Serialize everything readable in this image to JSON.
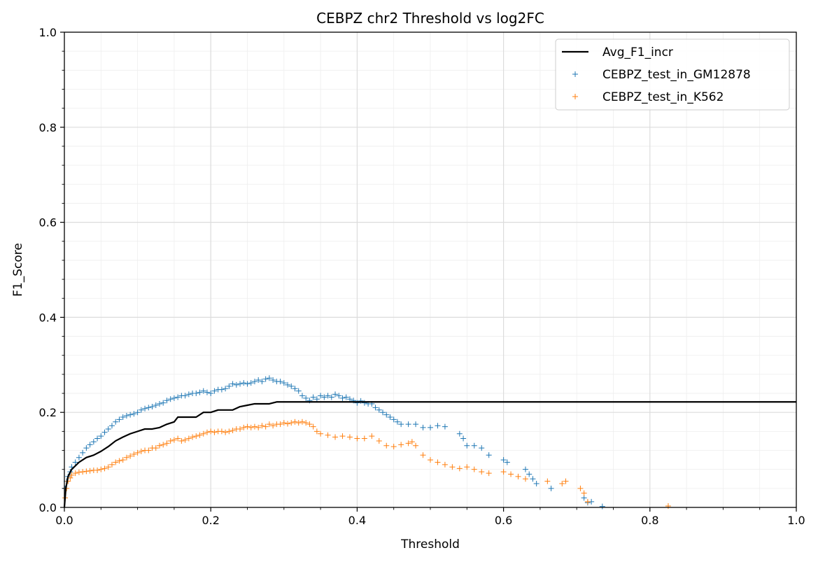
{
  "chart_data": {
    "type": "scatter",
    "title": "CEBPZ chr2 Threshold vs log2FC",
    "xlabel": "Threshold",
    "ylabel": "F1_Score",
    "xlim": [
      0.0,
      1.0
    ],
    "ylim": [
      0.0,
      1.0
    ],
    "x_ticks": [
      "0.0",
      "0.2",
      "0.4",
      "0.6",
      "0.8",
      "1.0"
    ],
    "y_ticks": [
      "0.0",
      "0.2",
      "0.4",
      "0.6",
      "0.8",
      "1.0"
    ],
    "grid": true,
    "minor_grid": true,
    "legend_position": "top-right",
    "series": [
      {
        "name": "Avg_F1_incr",
        "kind": "line",
        "color": "#000000",
        "x": [
          0.0,
          0.002,
          0.005,
          0.01,
          0.02,
          0.03,
          0.04,
          0.05,
          0.06,
          0.07,
          0.08,
          0.09,
          0.1,
          0.11,
          0.12,
          0.13,
          0.14,
          0.15,
          0.155,
          0.16,
          0.18,
          0.19,
          0.2,
          0.21,
          0.23,
          0.24,
          0.25,
          0.26,
          0.28,
          0.29,
          0.35,
          0.4,
          0.5,
          0.6,
          0.7,
          0.8,
          0.9,
          1.0
        ],
        "y": [
          0.0,
          0.04,
          0.065,
          0.08,
          0.095,
          0.105,
          0.11,
          0.118,
          0.128,
          0.14,
          0.148,
          0.155,
          0.16,
          0.165,
          0.165,
          0.168,
          0.175,
          0.18,
          0.19,
          0.19,
          0.19,
          0.2,
          0.2,
          0.205,
          0.205,
          0.212,
          0.215,
          0.218,
          0.218,
          0.222,
          0.222,
          0.222,
          0.222,
          0.222,
          0.222,
          0.222,
          0.222,
          0.222
        ]
      },
      {
        "name": "CEBPZ_test_in_GM12878",
        "kind": "scatter",
        "marker": "+",
        "color": "#1f77b4",
        "x": [
          0.001,
          0.003,
          0.005,
          0.008,
          0.01,
          0.015,
          0.02,
          0.025,
          0.03,
          0.035,
          0.04,
          0.045,
          0.05,
          0.055,
          0.06,
          0.065,
          0.07,
          0.075,
          0.08,
          0.085,
          0.09,
          0.095,
          0.1,
          0.105,
          0.11,
          0.115,
          0.12,
          0.125,
          0.13,
          0.135,
          0.14,
          0.145,
          0.15,
          0.155,
          0.16,
          0.165,
          0.17,
          0.175,
          0.18,
          0.185,
          0.19,
          0.195,
          0.2,
          0.205,
          0.21,
          0.215,
          0.22,
          0.225,
          0.23,
          0.235,
          0.24,
          0.245,
          0.25,
          0.255,
          0.26,
          0.265,
          0.27,
          0.275,
          0.28,
          0.285,
          0.29,
          0.295,
          0.3,
          0.305,
          0.31,
          0.315,
          0.32,
          0.325,
          0.33,
          0.335,
          0.34,
          0.345,
          0.35,
          0.355,
          0.36,
          0.365,
          0.37,
          0.375,
          0.38,
          0.385,
          0.39,
          0.395,
          0.4,
          0.405,
          0.41,
          0.415,
          0.42,
          0.425,
          0.43,
          0.435,
          0.44,
          0.445,
          0.45,
          0.455,
          0.46,
          0.47,
          0.48,
          0.49,
          0.5,
          0.51,
          0.52,
          0.54,
          0.545,
          0.55,
          0.56,
          0.57,
          0.58,
          0.6,
          0.605,
          0.63,
          0.635,
          0.64,
          0.645,
          0.665,
          0.71,
          0.715,
          0.72,
          0.735
        ],
        "y": [
          0.04,
          0.055,
          0.065,
          0.075,
          0.085,
          0.095,
          0.105,
          0.115,
          0.125,
          0.132,
          0.138,
          0.145,
          0.15,
          0.158,
          0.165,
          0.172,
          0.18,
          0.185,
          0.19,
          0.193,
          0.195,
          0.197,
          0.2,
          0.205,
          0.208,
          0.21,
          0.212,
          0.215,
          0.218,
          0.22,
          0.225,
          0.228,
          0.23,
          0.232,
          0.235,
          0.235,
          0.238,
          0.24,
          0.24,
          0.242,
          0.245,
          0.242,
          0.24,
          0.245,
          0.248,
          0.248,
          0.25,
          0.255,
          0.26,
          0.258,
          0.26,
          0.262,
          0.26,
          0.262,
          0.265,
          0.268,
          0.265,
          0.27,
          0.272,
          0.268,
          0.265,
          0.265,
          0.262,
          0.258,
          0.255,
          0.25,
          0.245,
          0.235,
          0.23,
          0.225,
          0.232,
          0.228,
          0.235,
          0.232,
          0.235,
          0.232,
          0.238,
          0.235,
          0.23,
          0.232,
          0.228,
          0.225,
          0.22,
          0.224,
          0.22,
          0.218,
          0.218,
          0.21,
          0.205,
          0.2,
          0.195,
          0.19,
          0.185,
          0.18,
          0.175,
          0.175,
          0.175,
          0.168,
          0.168,
          0.172,
          0.17,
          0.155,
          0.145,
          0.13,
          0.13,
          0.125,
          0.11,
          0.1,
          0.095,
          0.08,
          0.07,
          0.06,
          0.05,
          0.04,
          0.02,
          0.01,
          0.012,
          0.002
        ]
      },
      {
        "name": "CEBPZ_test_in_K562",
        "kind": "scatter",
        "marker": "+",
        "color": "#ff7f0e",
        "x": [
          0.001,
          0.003,
          0.005,
          0.008,
          0.01,
          0.015,
          0.02,
          0.025,
          0.03,
          0.035,
          0.04,
          0.045,
          0.05,
          0.055,
          0.06,
          0.065,
          0.07,
          0.075,
          0.08,
          0.085,
          0.09,
          0.095,
          0.1,
          0.105,
          0.11,
          0.115,
          0.12,
          0.125,
          0.13,
          0.135,
          0.14,
          0.145,
          0.15,
          0.155,
          0.16,
          0.165,
          0.17,
          0.175,
          0.18,
          0.185,
          0.19,
          0.195,
          0.2,
          0.205,
          0.21,
          0.215,
          0.22,
          0.225,
          0.23,
          0.235,
          0.24,
          0.245,
          0.25,
          0.255,
          0.26,
          0.265,
          0.27,
          0.275,
          0.28,
          0.285,
          0.29,
          0.295,
          0.3,
          0.305,
          0.31,
          0.315,
          0.32,
          0.325,
          0.33,
          0.335,
          0.34,
          0.345,
          0.35,
          0.36,
          0.37,
          0.38,
          0.39,
          0.4,
          0.41,
          0.42,
          0.43,
          0.44,
          0.45,
          0.46,
          0.47,
          0.475,
          0.48,
          0.49,
          0.5,
          0.51,
          0.52,
          0.53,
          0.54,
          0.55,
          0.56,
          0.57,
          0.58,
          0.6,
          0.61,
          0.62,
          0.63,
          0.66,
          0.68,
          0.685,
          0.705,
          0.71,
          0.715,
          0.825
        ],
        "y": [
          0.02,
          0.04,
          0.055,
          0.062,
          0.068,
          0.072,
          0.074,
          0.075,
          0.076,
          0.077,
          0.078,
          0.078,
          0.08,
          0.082,
          0.085,
          0.09,
          0.095,
          0.098,
          0.1,
          0.105,
          0.108,
          0.112,
          0.115,
          0.118,
          0.12,
          0.12,
          0.125,
          0.125,
          0.13,
          0.132,
          0.135,
          0.14,
          0.142,
          0.145,
          0.14,
          0.142,
          0.145,
          0.148,
          0.15,
          0.152,
          0.155,
          0.158,
          0.16,
          0.158,
          0.16,
          0.16,
          0.158,
          0.16,
          0.162,
          0.165,
          0.165,
          0.168,
          0.17,
          0.168,
          0.17,
          0.168,
          0.172,
          0.17,
          0.175,
          0.172,
          0.175,
          0.175,
          0.178,
          0.176,
          0.178,
          0.18,
          0.178,
          0.18,
          0.178,
          0.175,
          0.17,
          0.16,
          0.155,
          0.152,
          0.148,
          0.15,
          0.148,
          0.145,
          0.145,
          0.15,
          0.14,
          0.13,
          0.128,
          0.132,
          0.135,
          0.138,
          0.13,
          0.11,
          0.1,
          0.095,
          0.09,
          0.085,
          0.082,
          0.085,
          0.08,
          0.075,
          0.072,
          0.075,
          0.07,
          0.065,
          0.06,
          0.055,
          0.05,
          0.055,
          0.04,
          0.03,
          0.012,
          0.003
        ]
      }
    ]
  }
}
